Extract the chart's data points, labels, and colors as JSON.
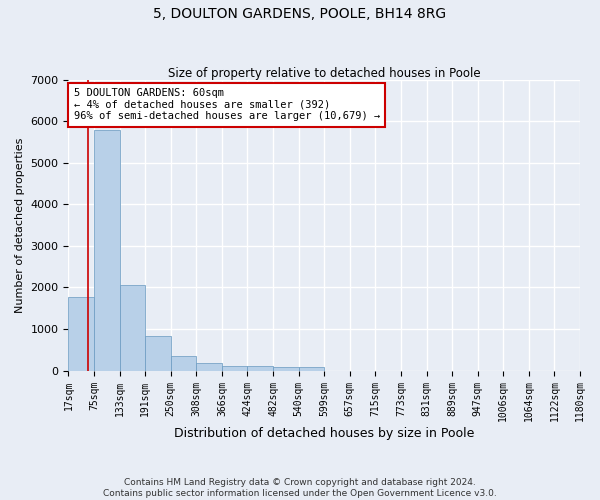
{
  "title": "5, DOULTON GARDENS, POOLE, BH14 8RG",
  "subtitle": "Size of property relative to detached houses in Poole",
  "xlabel": "Distribution of detached houses by size in Poole",
  "ylabel": "Number of detached properties",
  "bar_values": [
    1780,
    5780,
    2050,
    820,
    340,
    190,
    110,
    100,
    90,
    80,
    0,
    0,
    0,
    0,
    0,
    0,
    0,
    0,
    0,
    0
  ],
  "bar_labels": [
    "17sqm",
    "75sqm",
    "133sqm",
    "191sqm",
    "250sqm",
    "308sqm",
    "366sqm",
    "424sqm",
    "482sqm",
    "540sqm",
    "599sqm",
    "657sqm",
    "715sqm",
    "773sqm",
    "831sqm",
    "889sqm",
    "947sqm",
    "1006sqm",
    "1064sqm",
    "1122sqm",
    "1180sqm"
  ],
  "bar_color": "#b8d0e8",
  "bar_edge_color": "#6899c0",
  "annotation_text": "5 DOULTON GARDENS: 60sqm\n← 4% of detached houses are smaller (392)\n96% of semi-detached houses are larger (10,679) →",
  "annotation_box_color": "#ffffff",
  "annotation_border_color": "#cc0000",
  "ylim": [
    0,
    7000
  ],
  "yticks": [
    0,
    1000,
    2000,
    3000,
    4000,
    5000,
    6000,
    7000
  ],
  "footer_line1": "Contains HM Land Registry data © Crown copyright and database right 2024.",
  "footer_line2": "Contains public sector information licensed under the Open Government Licence v3.0.",
  "bg_color": "#e8edf5",
  "plot_bg_color": "#e8edf5",
  "grid_color": "#ffffff",
  "highlight_vline_color": "#cc0000",
  "highlight_vline_x": 0.75
}
